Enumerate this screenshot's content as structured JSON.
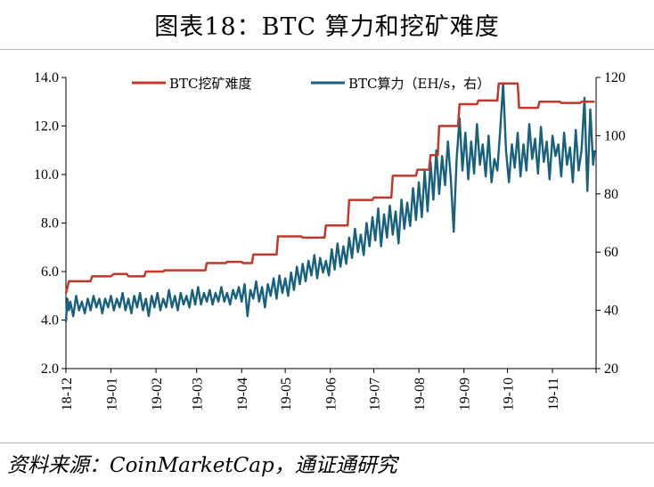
{
  "title": "图表18：BTC 算力和挖矿难度",
  "source": "资料来源：CoinMarketCap，通证通研究",
  "colors": {
    "difficulty": "#c0392b",
    "hashrate": "#17607f"
  },
  "chart_data": {
    "type": "line",
    "x_tick_labels": [
      "18-12",
      "19-01",
      "19-02",
      "19-03",
      "19-04",
      "19-05",
      "19-06",
      "19-07",
      "19-08",
      "19-09",
      "19-10",
      "19-11"
    ],
    "x_range": [
      "2018-12-01",
      "2019-11-30"
    ],
    "y_left": {
      "range": [
        2.0,
        14.0
      ],
      "ticks": [
        "2.0",
        "4.0",
        "6.0",
        "8.0",
        "10.0",
        "12.0",
        "14.0"
      ]
    },
    "y_right": {
      "range": [
        20,
        120
      ],
      "ticks": [
        "20",
        "40",
        "60",
        "80",
        "100",
        "120"
      ]
    },
    "legend_position": "top",
    "series": [
      {
        "name": "BTC挖矿难度",
        "axis": "left",
        "style": "step",
        "points": [
          [
            "2018-12-01",
            5.1
          ],
          [
            "2018-12-03",
            5.6
          ],
          [
            "2018-12-18",
            5.6
          ],
          [
            "2018-12-19",
            5.8
          ],
          [
            "2019-01-01",
            5.8
          ],
          [
            "2019-01-03",
            5.9
          ],
          [
            "2019-01-12",
            5.9
          ],
          [
            "2019-01-13",
            5.8
          ],
          [
            "2019-01-24",
            5.8
          ],
          [
            "2019-01-25",
            6.0
          ],
          [
            "2019-02-06",
            6.0
          ],
          [
            "2019-02-07",
            6.05
          ],
          [
            "2019-03-07",
            6.05
          ],
          [
            "2019-03-08",
            6.35
          ],
          [
            "2019-03-21",
            6.35
          ],
          [
            "2019-03-22",
            6.4
          ],
          [
            "2019-04-01",
            6.4
          ],
          [
            "2019-04-02",
            6.35
          ],
          [
            "2019-04-08",
            6.35
          ],
          [
            "2019-04-09",
            6.7
          ],
          [
            "2019-04-25",
            6.7
          ],
          [
            "2019-04-26",
            7.45
          ],
          [
            "2019-05-12",
            7.45
          ],
          [
            "2019-05-13",
            7.4
          ],
          [
            "2019-05-28",
            7.4
          ],
          [
            "2019-05-29",
            7.9
          ],
          [
            "2019-06-13",
            7.9
          ],
          [
            "2019-06-14",
            8.95
          ],
          [
            "2019-06-30",
            8.95
          ],
          [
            "2019-07-01",
            9.05
          ],
          [
            "2019-07-13",
            9.05
          ],
          [
            "2019-07-14",
            9.95
          ],
          [
            "2019-07-30",
            9.95
          ],
          [
            "2019-07-31",
            10.2
          ],
          [
            "2019-08-08",
            10.2
          ],
          [
            "2019-08-09",
            10.8
          ],
          [
            "2019-08-14",
            10.8
          ],
          [
            "2019-08-15",
            12.0
          ],
          [
            "2019-08-28",
            12.0
          ],
          [
            "2019-08-29",
            12.9
          ],
          [
            "2019-09-10",
            12.9
          ],
          [
            "2019-09-11",
            13.05
          ],
          [
            "2019-09-24",
            13.05
          ],
          [
            "2019-09-25",
            13.75
          ],
          [
            "2019-10-08",
            13.75
          ],
          [
            "2019-10-09",
            12.75
          ],
          [
            "2019-10-22",
            12.75
          ],
          [
            "2019-10-23",
            13.0
          ],
          [
            "2019-11-06",
            13.0
          ],
          [
            "2019-11-07",
            12.95
          ],
          [
            "2019-11-20",
            12.95
          ],
          [
            "2019-11-21",
            13.0
          ],
          [
            "2019-11-30",
            13.0
          ]
        ]
      },
      {
        "name": "BTC算力（EH/s，右）",
        "axis": "right",
        "style": "line",
        "points": [
          [
            "2018-12-01",
            36
          ],
          [
            "2018-12-02",
            44
          ],
          [
            "2018-12-03",
            40
          ],
          [
            "2018-12-04",
            43
          ],
          [
            "2018-12-06",
            38
          ],
          [
            "2018-12-08",
            45
          ],
          [
            "2018-12-10",
            40
          ],
          [
            "2018-12-12",
            43
          ],
          [
            "2018-12-14",
            39
          ],
          [
            "2018-12-16",
            44
          ],
          [
            "2018-12-18",
            40
          ],
          [
            "2018-12-20",
            45
          ],
          [
            "2018-12-22",
            41
          ],
          [
            "2018-12-24",
            44
          ],
          [
            "2018-12-26",
            39
          ],
          [
            "2018-12-28",
            44
          ],
          [
            "2018-12-30",
            41
          ],
          [
            "2019-01-01",
            45
          ],
          [
            "2019-01-03",
            40
          ],
          [
            "2019-01-05",
            44
          ],
          [
            "2019-01-07",
            41
          ],
          [
            "2019-01-09",
            46
          ],
          [
            "2019-01-11",
            40
          ],
          [
            "2019-01-13",
            44
          ],
          [
            "2019-01-15",
            39
          ],
          [
            "2019-01-17",
            45
          ],
          [
            "2019-01-19",
            41
          ],
          [
            "2019-01-21",
            46
          ],
          [
            "2019-01-23",
            40
          ],
          [
            "2019-01-25",
            44
          ],
          [
            "2019-01-27",
            38
          ],
          [
            "2019-01-29",
            45
          ],
          [
            "2019-01-31",
            41
          ],
          [
            "2019-02-02",
            46
          ],
          [
            "2019-02-04",
            40
          ],
          [
            "2019-02-06",
            44
          ],
          [
            "2019-02-08",
            41
          ],
          [
            "2019-02-10",
            47
          ],
          [
            "2019-02-12",
            41
          ],
          [
            "2019-02-14",
            45
          ],
          [
            "2019-02-16",
            40
          ],
          [
            "2019-02-18",
            46
          ],
          [
            "2019-02-20",
            42
          ],
          [
            "2019-02-22",
            45
          ],
          [
            "2019-02-24",
            41
          ],
          [
            "2019-02-26",
            47
          ],
          [
            "2019-02-28",
            42
          ],
          [
            "2019-03-02",
            48
          ],
          [
            "2019-03-04",
            42
          ],
          [
            "2019-03-06",
            46
          ],
          [
            "2019-03-08",
            43
          ],
          [
            "2019-03-10",
            47
          ],
          [
            "2019-03-12",
            42
          ],
          [
            "2019-03-14",
            46
          ],
          [
            "2019-03-16",
            43
          ],
          [
            "2019-03-18",
            48
          ],
          [
            "2019-03-20",
            43
          ],
          [
            "2019-03-22",
            46
          ],
          [
            "2019-03-24",
            42
          ],
          [
            "2019-03-26",
            47
          ],
          [
            "2019-03-28",
            44
          ],
          [
            "2019-03-30",
            48
          ],
          [
            "2019-04-01",
            43
          ],
          [
            "2019-04-03",
            49
          ],
          [
            "2019-04-05",
            38
          ],
          [
            "2019-04-07",
            47
          ],
          [
            "2019-04-09",
            44
          ],
          [
            "2019-04-11",
            50
          ],
          [
            "2019-04-13",
            43
          ],
          [
            "2019-04-15",
            48
          ],
          [
            "2019-04-17",
            41
          ],
          [
            "2019-04-19",
            49
          ],
          [
            "2019-04-21",
            45
          ],
          [
            "2019-04-23",
            51
          ],
          [
            "2019-04-25",
            44
          ],
          [
            "2019-04-27",
            52
          ],
          [
            "2019-04-29",
            46
          ],
          [
            "2019-05-01",
            51
          ],
          [
            "2019-05-03",
            45
          ],
          [
            "2019-05-05",
            53
          ],
          [
            "2019-05-07",
            47
          ],
          [
            "2019-05-09",
            55
          ],
          [
            "2019-05-11",
            49
          ],
          [
            "2019-05-13",
            56
          ],
          [
            "2019-05-15",
            50
          ],
          [
            "2019-05-17",
            57
          ],
          [
            "2019-05-19",
            52
          ],
          [
            "2019-05-21",
            59
          ],
          [
            "2019-05-23",
            51
          ],
          [
            "2019-05-25",
            58
          ],
          [
            "2019-05-27",
            53
          ],
          [
            "2019-05-29",
            57
          ],
          [
            "2019-05-31",
            52
          ],
          [
            "2019-06-02",
            61
          ],
          [
            "2019-06-04",
            54
          ],
          [
            "2019-06-06",
            63
          ],
          [
            "2019-06-08",
            55
          ],
          [
            "2019-06-10",
            62
          ],
          [
            "2019-06-12",
            56
          ],
          [
            "2019-06-14",
            65
          ],
          [
            "2019-06-16",
            58
          ],
          [
            "2019-06-18",
            68
          ],
          [
            "2019-06-20",
            60
          ],
          [
            "2019-06-22",
            66
          ],
          [
            "2019-06-24",
            59
          ],
          [
            "2019-06-26",
            70
          ],
          [
            "2019-06-28",
            62
          ],
          [
            "2019-06-30",
            72
          ],
          [
            "2019-07-02",
            64
          ],
          [
            "2019-07-04",
            75
          ],
          [
            "2019-07-06",
            62
          ],
          [
            "2019-07-08",
            73
          ],
          [
            "2019-07-10",
            65
          ],
          [
            "2019-07-12",
            76
          ],
          [
            "2019-07-14",
            66
          ],
          [
            "2019-07-16",
            74
          ],
          [
            "2019-07-18",
            63
          ],
          [
            "2019-07-20",
            78
          ],
          [
            "2019-07-22",
            68
          ],
          [
            "2019-07-24",
            77
          ],
          [
            "2019-07-26",
            69
          ],
          [
            "2019-07-28",
            82
          ],
          [
            "2019-07-30",
            71
          ],
          [
            "2019-08-01",
            84
          ],
          [
            "2019-08-03",
            72
          ],
          [
            "2019-08-05",
            88
          ],
          [
            "2019-08-07",
            74
          ],
          [
            "2019-08-09",
            91
          ],
          [
            "2019-08-11",
            78
          ],
          [
            "2019-08-13",
            95
          ],
          [
            "2019-08-15",
            80
          ],
          [
            "2019-08-17",
            93
          ],
          [
            "2019-08-19",
            83
          ],
          [
            "2019-08-21",
            98
          ],
          [
            "2019-08-23",
            85
          ],
          [
            "2019-08-25",
            67
          ],
          [
            "2019-08-27",
            92
          ],
          [
            "2019-08-29",
            106
          ],
          [
            "2019-08-31",
            88
          ],
          [
            "2019-09-02",
            101
          ],
          [
            "2019-09-04",
            85
          ],
          [
            "2019-09-06",
            98
          ],
          [
            "2019-09-08",
            87
          ],
          [
            "2019-09-10",
            104
          ],
          [
            "2019-09-12",
            90
          ],
          [
            "2019-09-14",
            97
          ],
          [
            "2019-09-16",
            86
          ],
          [
            "2019-09-18",
            100
          ],
          [
            "2019-09-20",
            84
          ],
          [
            "2019-09-22",
            92
          ],
          [
            "2019-09-24",
            88
          ],
          [
            "2019-09-26",
            102
          ],
          [
            "2019-09-28",
            118
          ],
          [
            "2019-09-30",
            95
          ],
          [
            "2019-10-02",
            84
          ],
          [
            "2019-10-04",
            97
          ],
          [
            "2019-10-06",
            89
          ],
          [
            "2019-10-08",
            101
          ],
          [
            "2019-10-10",
            86
          ],
          [
            "2019-10-12",
            97
          ],
          [
            "2019-10-14",
            88
          ],
          [
            "2019-10-16",
            104
          ],
          [
            "2019-10-18",
            92
          ],
          [
            "2019-10-20",
            99
          ],
          [
            "2019-10-22",
            87
          ],
          [
            "2019-10-24",
            103
          ],
          [
            "2019-10-26",
            91
          ],
          [
            "2019-10-28",
            98
          ],
          [
            "2019-10-30",
            85
          ],
          [
            "2019-11-01",
            100
          ],
          [
            "2019-11-03",
            93
          ],
          [
            "2019-11-05",
            97
          ],
          [
            "2019-11-07",
            86
          ],
          [
            "2019-11-09",
            101
          ],
          [
            "2019-11-11",
            90
          ],
          [
            "2019-11-13",
            96
          ],
          [
            "2019-11-15",
            84
          ],
          [
            "2019-11-17",
            102
          ],
          [
            "2019-11-19",
            88
          ],
          [
            "2019-11-21",
            95
          ],
          [
            "2019-11-23",
            113
          ],
          [
            "2019-11-25",
            81
          ],
          [
            "2019-11-27",
            109
          ],
          [
            "2019-11-29",
            90
          ],
          [
            "2019-11-30",
            95
          ]
        ]
      }
    ]
  }
}
